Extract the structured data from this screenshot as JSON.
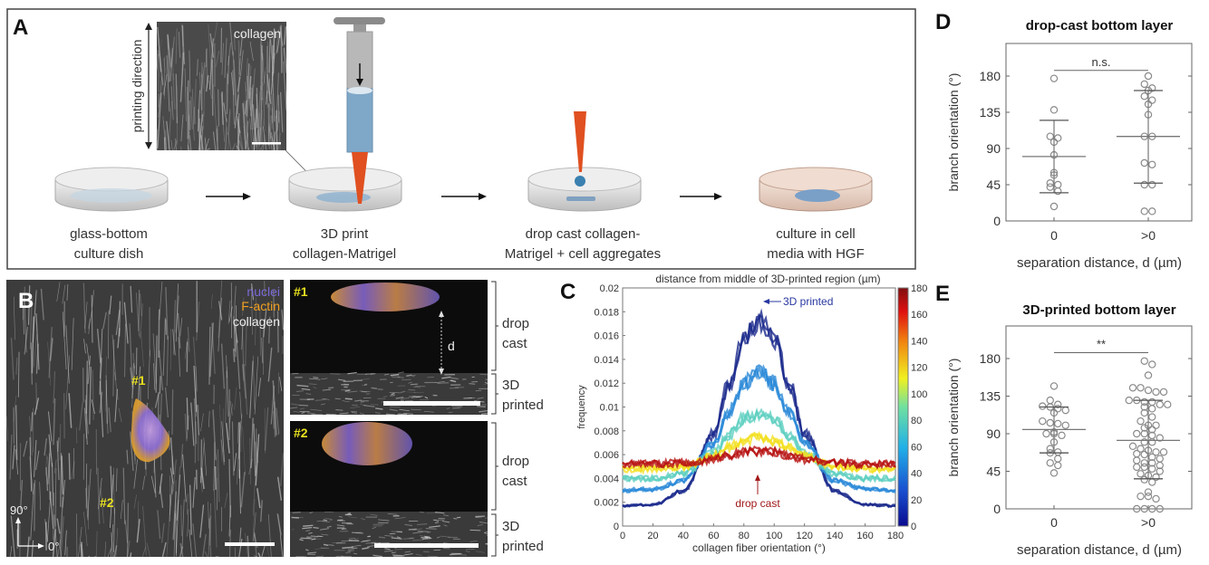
{
  "panels": {
    "A": {
      "label": "A",
      "inset_label": "collagen",
      "printing_direction": "printing direction",
      "steps": [
        {
          "line1": "glass-bottom",
          "line2": "culture dish"
        },
        {
          "line1": "3D print",
          "line2": "collagen-Matrigel"
        },
        {
          "line1": "drop cast collagen-",
          "line2": "Matrigel + cell aggregates"
        },
        {
          "line1": "culture in cell",
          "line2": "media with HGF"
        }
      ]
    },
    "B": {
      "label": "B",
      "legend": [
        {
          "text": "nuclei",
          "color": "#7a6ad8"
        },
        {
          "text": "F-actin",
          "color": "#f0a020"
        },
        {
          "text": "collagen",
          "color": "#f0f0f0"
        }
      ],
      "markers": [
        "#1",
        "#2"
      ],
      "axis_90": "90°",
      "axis_0": "0°",
      "insets": [
        {
          "label": "#1",
          "d_label": "d"
        },
        {
          "label": "#2"
        }
      ],
      "layers": {
        "drop_cast": [
          "drop",
          "cast"
        ],
        "printed": [
          "3D",
          "printed"
        ]
      }
    },
    "C": {
      "label": "C"
    },
    "D": {
      "label": "D"
    },
    "E": {
      "label": "E"
    }
  },
  "chart_data": [
    {
      "type": "line",
      "title": "distance from middle of 3D-printed region (µm)",
      "xlabel": "collagen fiber orientation (°)",
      "ylabel": "frequency",
      "xlim": [
        0,
        180
      ],
      "ylim": [
        0,
        0.02
      ],
      "xticks": [
        "0",
        "20",
        "40",
        "60",
        "80",
        "100",
        "120",
        "140",
        "160",
        "180"
      ],
      "yticks": [
        "0",
        "0.002",
        "0.004",
        "0.006",
        "0.008",
        "0.01",
        "0.012",
        "0.014",
        "0.016",
        "0.018",
        "0.02"
      ],
      "colorbar": {
        "range": [
          0,
          180
        ],
        "ticks": [
          "0",
          "20",
          "40",
          "60",
          "80",
          "100",
          "120",
          "140",
          "160",
          "180"
        ]
      },
      "annotations": [
        {
          "text": "3D printed",
          "color": "#2838a0"
        },
        {
          "text": "drop cast",
          "color": "#a01818"
        }
      ],
      "x": [
        0,
        20,
        40,
        60,
        70,
        80,
        90,
        100,
        110,
        120,
        140,
        160,
        180
      ],
      "series": [
        {
          "name": "0",
          "color": "#1c2a8c",
          "values": [
            0.0017,
            0.0018,
            0.0029,
            0.0077,
            0.0119,
            0.0157,
            0.0172,
            0.0157,
            0.0119,
            0.0077,
            0.0029,
            0.0018,
            0.0017
          ]
        },
        {
          "name": "40",
          "color": "#2a8ad8",
          "values": [
            0.003,
            0.0031,
            0.0038,
            0.0069,
            0.0096,
            0.012,
            0.013,
            0.012,
            0.0096,
            0.0069,
            0.0038,
            0.0031,
            0.003
          ]
        },
        {
          "name": "80",
          "color": "#5fd0c0",
          "values": [
            0.004,
            0.004,
            0.0044,
            0.0061,
            0.0076,
            0.009,
            0.0095,
            0.009,
            0.0076,
            0.0061,
            0.0044,
            0.004,
            0.004
          ]
        },
        {
          "name": "120",
          "color": "#f2e020",
          "values": [
            0.0048,
            0.0048,
            0.005,
            0.0059,
            0.0066,
            0.0072,
            0.0075,
            0.0072,
            0.0066,
            0.0059,
            0.005,
            0.0048,
            0.0048
          ]
        },
        {
          "name": "180",
          "color": "#b81414",
          "values": [
            0.0052,
            0.0052,
            0.0053,
            0.0056,
            0.0059,
            0.0062,
            0.0063,
            0.0062,
            0.0059,
            0.0056,
            0.0053,
            0.0052,
            0.0052
          ]
        }
      ]
    },
    {
      "type": "scatter",
      "title": "drop-cast bottom layer",
      "xlabel": "separation distance, d (µm)",
      "ylabel": "branch orientation (°)",
      "ylim": [
        0,
        180
      ],
      "yticks": [
        "0",
        "45",
        "90",
        "135",
        "180"
      ],
      "categories": [
        "0",
        ">0"
      ],
      "significance": "n.s.",
      "groups": [
        {
          "values": [
            177,
            138,
            105,
            103,
            98,
            82,
            60,
            57,
            47,
            45,
            42,
            37,
            18
          ],
          "mean": 80,
          "sd_low": 35,
          "sd_high": 125
        },
        {
          "values": [
            180,
            170,
            165,
            162,
            155,
            150,
            145,
            132,
            105,
            105,
            72,
            70,
            45,
            45,
            12,
            12
          ],
          "mean": 105,
          "sd_low": 47,
          "sd_high": 162
        }
      ]
    },
    {
      "type": "scatter",
      "title": "3D-printed bottom layer",
      "xlabel": "separation distance, d (µm)",
      "ylabel": "branch orientation (°)",
      "ylim": [
        0,
        180
      ],
      "yticks": [
        "0",
        "45",
        "90",
        "135",
        "180"
      ],
      "categories": [
        "0",
        ">0"
      ],
      "significance": "**",
      "groups": [
        {
          "values": [
            147,
            130,
            125,
            123,
            122,
            120,
            118,
            115,
            105,
            103,
            102,
            100,
            92,
            90,
            90,
            88,
            80,
            72,
            68,
            67,
            60,
            55,
            52,
            43
          ],
          "mean": 95,
          "sd_low": 67,
          "sd_high": 122
        },
        {
          "values": [
            177,
            173,
            160,
            145,
            145,
            142,
            140,
            140,
            130,
            130,
            128,
            128,
            125,
            125,
            122,
            120,
            115,
            110,
            105,
            100,
            100,
            97,
            95,
            90,
            90,
            88,
            85,
            80,
            80,
            75,
            72,
            70,
            68,
            68,
            66,
            65,
            62,
            60,
            58,
            55,
            55,
            52,
            50,
            50,
            48,
            45,
            42,
            40,
            38,
            35,
            32,
            20,
            15,
            15,
            12,
            0,
            0,
            0,
            0
          ],
          "mean": 82,
          "sd_low": 36,
          "sd_high": 130
        }
      ]
    }
  ]
}
